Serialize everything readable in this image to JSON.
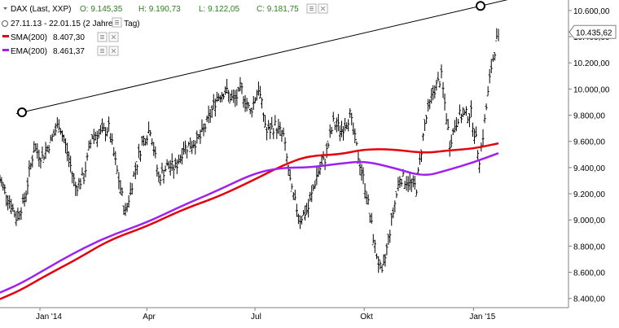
{
  "header": {
    "instrument": "DAX (Last, XXP)",
    "open": "O: 9.145,35",
    "high": "H: 9.190,73",
    "low": "L: 9.122,05",
    "close": "C: 9.181,75",
    "period": "27.11.13 - 22.01.15 (2 Jahre, 1 Tag)",
    "sma_label": "SMA(200)",
    "sma_value": "8.407,30",
    "ema_label": "EMA(200)",
    "ema_value": "8.461,37",
    "button_icons": [
      "settings-icon",
      "close-icon"
    ]
  },
  "colors": {
    "price": "#000000",
    "sma": "#e3000f",
    "ema": "#a020f0",
    "trendline": "#000000",
    "axis": "#808080",
    "ohlc_green": "#2e7d1e"
  },
  "current_price_label": "10.435,62",
  "chart_data": {
    "type": "line",
    "title": "DAX (Last, XXP)",
    "x_ticks": [
      "Jan '14",
      "Apr",
      "Jul",
      "Okt",
      "Jan '15"
    ],
    "y_ticks": [
      "10.600,00",
      "10.400,00",
      "10.200,00",
      "10.000,00",
      "9.800,00",
      "9.600,00",
      "9.400,00",
      "9.200,00",
      "9.000,00",
      "8.800,00",
      "8.600,00",
      "8.400,00"
    ],
    "ylim": [
      8330,
      10680
    ],
    "x_range": [
      "2013-11-27",
      "2015-01-22"
    ],
    "series": [
      {
        "name": "DAX",
        "style": "ohlc-daily",
        "points": [
          [
            "2013-11-27",
            9330
          ],
          [
            "2013-12-05",
            9180
          ],
          [
            "2013-12-12",
            9020
          ],
          [
            "2013-12-19",
            9150
          ],
          [
            "2013-12-27",
            9550
          ],
          [
            "2014-01-03",
            9480
          ],
          [
            "2014-01-10",
            9600
          ],
          [
            "2014-01-17",
            9740
          ],
          [
            "2014-01-24",
            9520
          ],
          [
            "2014-01-31",
            9250
          ],
          [
            "2014-02-07",
            9330
          ],
          [
            "2014-02-14",
            9650
          ],
          [
            "2014-02-21",
            9660
          ],
          [
            "2014-02-28",
            9700
          ],
          [
            "2014-03-07",
            9370
          ],
          [
            "2014-03-14",
            9050
          ],
          [
            "2014-03-21",
            9340
          ],
          [
            "2014-03-28",
            9590
          ],
          [
            "2014-04-04",
            9700
          ],
          [
            "2014-04-11",
            9320
          ],
          [
            "2014-04-18",
            9410
          ],
          [
            "2014-04-25",
            9400
          ],
          [
            "2014-05-02",
            9550
          ],
          [
            "2014-05-09",
            9580
          ],
          [
            "2014-05-16",
            9630
          ],
          [
            "2014-05-23",
            9770
          ],
          [
            "2014-05-30",
            9940
          ],
          [
            "2014-06-06",
            9990
          ],
          [
            "2014-06-13",
            9910
          ],
          [
            "2014-06-20",
            9990
          ],
          [
            "2014-06-27",
            9820
          ],
          [
            "2014-07-04",
            10010
          ],
          [
            "2014-07-11",
            9670
          ],
          [
            "2014-07-18",
            9720
          ],
          [
            "2014-07-25",
            9640
          ],
          [
            "2014-08-01",
            9210
          ],
          [
            "2014-08-08",
            9010
          ],
          [
            "2014-08-15",
            9090
          ],
          [
            "2014-08-22",
            9340
          ],
          [
            "2014-08-29",
            9470
          ],
          [
            "2014-09-05",
            9740
          ],
          [
            "2014-09-12",
            9690
          ],
          [
            "2014-09-19",
            9800
          ],
          [
            "2014-09-26",
            9490
          ],
          [
            "2014-10-03",
            9200
          ],
          [
            "2014-10-10",
            8790
          ],
          [
            "2014-10-16",
            8570
          ],
          [
            "2014-10-24",
            8990
          ],
          [
            "2014-10-31",
            9330
          ],
          [
            "2014-11-07",
            9290
          ],
          [
            "2014-11-14",
            9250
          ],
          [
            "2014-11-21",
            9730
          ],
          [
            "2014-11-28",
            9980
          ],
          [
            "2014-12-05",
            10090
          ],
          [
            "2014-12-12",
            9590
          ],
          [
            "2014-12-19",
            9790
          ],
          [
            "2014-12-30",
            9810
          ],
          [
            "2015-01-06",
            9470
          ],
          [
            "2015-01-09",
            9650
          ],
          [
            "2015-01-16",
            10170
          ],
          [
            "2015-01-22",
            10435
          ]
        ]
      },
      {
        "name": "SMA(200)",
        "points": [
          [
            "2013-11-27",
            8390
          ],
          [
            "2013-12-15",
            8460
          ],
          [
            "2014-01-05",
            8570
          ],
          [
            "2014-02-01",
            8700
          ],
          [
            "2014-03-01",
            8850
          ],
          [
            "2014-04-01",
            8950
          ],
          [
            "2014-05-01",
            9080
          ],
          [
            "2014-06-01",
            9180
          ],
          [
            "2014-07-01",
            9310
          ],
          [
            "2014-07-25",
            9420
          ],
          [
            "2014-08-15",
            9490
          ],
          [
            "2014-09-10",
            9500
          ],
          [
            "2014-10-01",
            9540
          ],
          [
            "2014-10-25",
            9540
          ],
          [
            "2014-11-20",
            9510
          ],
          [
            "2014-12-10",
            9530
          ],
          [
            "2015-01-01",
            9545
          ],
          [
            "2015-01-22",
            9585
          ]
        ]
      },
      {
        "name": "EMA(200)",
        "points": [
          [
            "2013-11-27",
            8440
          ],
          [
            "2013-12-15",
            8510
          ],
          [
            "2014-01-05",
            8620
          ],
          [
            "2014-02-01",
            8760
          ],
          [
            "2014-03-01",
            8880
          ],
          [
            "2014-04-01",
            8980
          ],
          [
            "2014-05-01",
            9110
          ],
          [
            "2014-06-01",
            9230
          ],
          [
            "2014-07-01",
            9360
          ],
          [
            "2014-07-25",
            9400
          ],
          [
            "2014-08-15",
            9400
          ],
          [
            "2014-09-10",
            9430
          ],
          [
            "2014-10-01",
            9450
          ],
          [
            "2014-10-25",
            9400
          ],
          [
            "2014-11-20",
            9330
          ],
          [
            "2014-12-10",
            9380
          ],
          [
            "2015-01-01",
            9440
          ],
          [
            "2015-01-22",
            9510
          ]
        ]
      },
      {
        "name": "Trendline",
        "points": [
          [
            "2013-11-27",
            9780
          ],
          [
            "2015-01-19",
            10660
          ]
        ],
        "anchors": [
          [
            "2013-11-28",
            9780
          ],
          [
            "2015-01-14",
            10650
          ]
        ]
      }
    ]
  }
}
